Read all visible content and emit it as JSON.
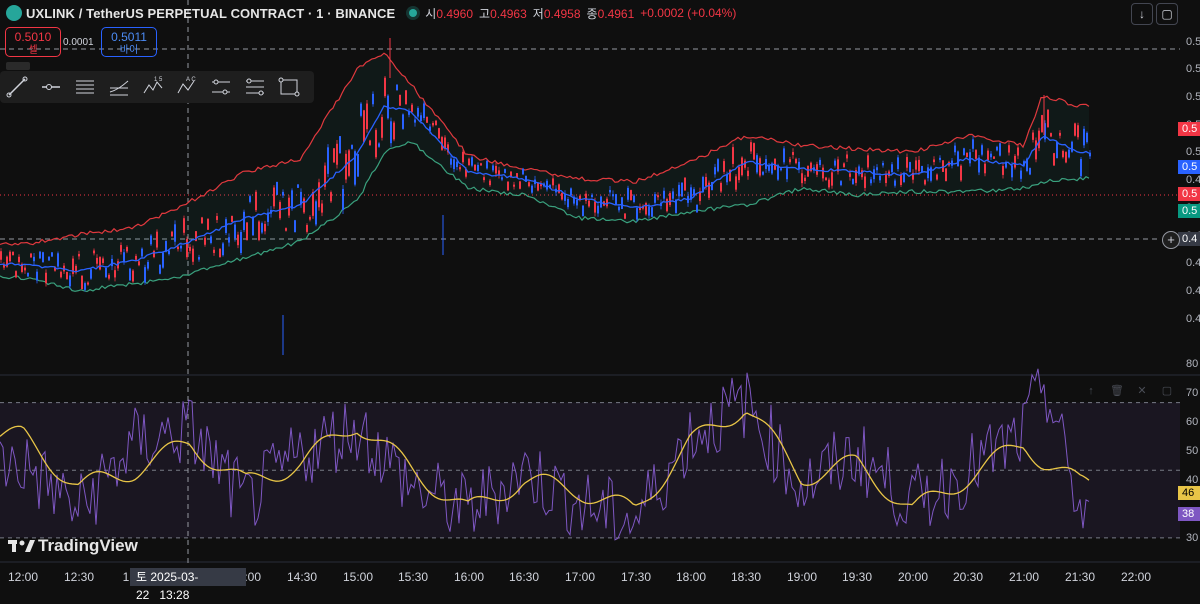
{
  "header": {
    "symbol_title": "UXLINK / TetherUS PERPETUAL CONTRACT · 1 · BINANCE",
    "ohlc": [
      {
        "key": "시",
        "value": "0.4960"
      },
      {
        "key": "고",
        "value": "0.4963"
      },
      {
        "key": "저",
        "value": "0.4958"
      },
      {
        "key": "종",
        "value": "0.4961"
      }
    ],
    "change": "+0.0002 (+0.04%)"
  },
  "trade": {
    "sell_price": "0.5010",
    "sell_label": "셀",
    "spread": "0.0001",
    "buy_price": "0.5011",
    "buy_label": "바이"
  },
  "price_axis": {
    "ticks": [
      "0.5",
      "0.5",
      "0.5",
      "0.5",
      "0.5",
      "0.4",
      "0.4",
      "0.4",
      "0.4",
      "0.4",
      "0.4"
    ],
    "labels": [
      {
        "text": "0.5",
        "color": "#f23645"
      },
      {
        "text": "0.5",
        "color": "#2962ff"
      },
      {
        "text": "0.5",
        "color": "#f23645"
      },
      {
        "text": "0.5",
        "color": "#089981"
      },
      {
        "text": "0.4",
        "color": "#363a45"
      }
    ]
  },
  "rsi_axis": {
    "ticks": [
      "80",
      "70",
      "60",
      "50",
      "40",
      "30"
    ],
    "labels": [
      {
        "text": "46",
        "color": "#e8c547"
      },
      {
        "text": "38",
        "color": "#7e57c2"
      }
    ]
  },
  "time_axis": {
    "ticks": [
      "12:00",
      "12:30",
      "1",
      "13:28",
      "14:00",
      "14:30",
      "15:00",
      "15:30",
      "16:00",
      "16:30",
      "17:00",
      "17:30",
      "18:00",
      "18:30",
      "19:00",
      "19:30",
      "20:00",
      "20:30",
      "21:00",
      "21:30",
      "22:00"
    ],
    "crosshair_label": "토 2025-03-22"
  },
  "branding": {
    "logo_text": "TradingView"
  },
  "toolbar": {
    "icons": [
      "trend-line-icon",
      "horizontal-ray-icon",
      "parallel-channel-icon",
      "regression-channel-icon",
      "elliott-wave-icon",
      "abcd-pattern-icon",
      "fib-retracement-icon",
      "fib-extension-icon",
      "rectangle-icon"
    ],
    "elliott_label": "1 5",
    "abcd_label": "A C"
  },
  "colors": {
    "background": "#0f0f0f",
    "bollinger_upper": "#e0393e",
    "bollinger_basis": "#2962ff",
    "bollinger_lower": "#3aa17e",
    "up_candle": "#2962ff",
    "down_candle": "#f23645",
    "rsi": "#7e57c2",
    "rsi_ma": "#e8c547"
  },
  "chart_data": {
    "type": "candlestick",
    "series_note": "1-minute candles with Bollinger Bands and RSI(14) with moving average",
    "price_range": [
      0.47,
      0.52
    ],
    "time_range": [
      "12:00",
      "22:00"
    ],
    "bollinger": {
      "times": [
        "12:00",
        "12:30",
        "13:00",
        "13:30",
        "14:00",
        "14:30",
        "15:00",
        "15:15",
        "15:30",
        "16:00",
        "16:30",
        "17:00",
        "17:30",
        "18:00",
        "18:30",
        "19:00",
        "19:30",
        "20:00",
        "20:30",
        "21:00",
        "21:10",
        "21:30"
      ],
      "upper": [
        0.4875,
        0.489,
        0.49,
        0.494,
        0.4985,
        0.5005,
        0.514,
        0.5165,
        0.5115,
        0.501,
        0.499,
        0.4975,
        0.497,
        0.5,
        0.504,
        0.5025,
        0.502,
        0.5015,
        0.504,
        0.5025,
        0.51,
        0.5085
      ],
      "basis": [
        0.4845,
        0.4835,
        0.485,
        0.488,
        0.4915,
        0.4935,
        0.501,
        0.5085,
        0.5075,
        0.4985,
        0.4975,
        0.4945,
        0.493,
        0.4945,
        0.5,
        0.499,
        0.4985,
        0.498,
        0.5005,
        0.4995,
        0.504,
        0.5015
      ],
      "lower": [
        0.4825,
        0.4805,
        0.4815,
        0.483,
        0.4855,
        0.488,
        0.494,
        0.5015,
        0.503,
        0.496,
        0.495,
        0.4915,
        0.491,
        0.4925,
        0.4935,
        0.496,
        0.495,
        0.4955,
        0.4955,
        0.496,
        0.497,
        0.4975
      ]
    },
    "rsi": {
      "range": [
        27,
        82
      ],
      "levels": [
        70,
        50,
        30
      ],
      "times": [
        "12:00",
        "12:30",
        "13:00",
        "13:30",
        "14:00",
        "14:30",
        "15:00",
        "15:30",
        "16:00",
        "16:30",
        "17:00",
        "17:30",
        "18:00",
        "18:30",
        "19:00",
        "19:30",
        "20:00",
        "20:30",
        "21:00",
        "21:10",
        "21:30"
      ],
      "values": [
        52,
        38,
        58,
        62,
        40,
        55,
        63,
        45,
        38,
        50,
        40,
        35,
        60,
        70,
        45,
        55,
        40,
        50,
        60,
        78,
        38
      ],
      "ma": [
        60,
        45,
        50,
        58,
        46,
        52,
        64,
        50,
        38,
        47,
        44,
        38,
        58,
        69,
        48,
        52,
        38,
        48,
        58,
        53,
        46
      ]
    },
    "last_price": "0.4961"
  }
}
